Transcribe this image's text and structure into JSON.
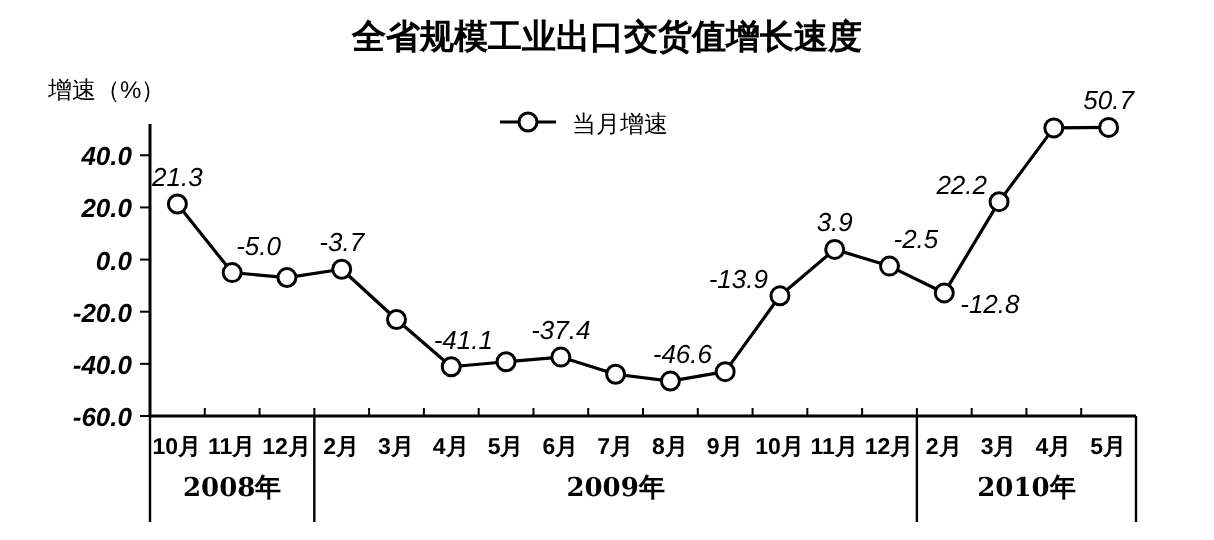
{
  "chart_data": {
    "type": "line",
    "title": "全省规模工业出口交货值增长速度",
    "ylabel": "增速（%）",
    "categories": [
      "10月",
      "11月",
      "12月",
      "2月",
      "3月",
      "4月",
      "5月",
      "6月",
      "7月",
      "8月",
      "9月",
      "10月",
      "11月",
      "12月",
      "2月",
      "3月",
      "4月",
      "5月"
    ],
    "series": [
      {
        "name": "当月增速",
        "color": "#000000",
        "values": [
          21.3,
          -5.0,
          -6.9,
          -3.7,
          -23,
          -41.1,
          -39.2,
          -37.4,
          -44,
          -46.6,
          -43,
          -13.9,
          3.9,
          -2.5,
          -12.8,
          22.2,
          50.5,
          50.7
        ],
        "value_labels": [
          "21.3",
          "-5.0",
          null,
          "-3.7",
          null,
          "-41.1",
          null,
          "-37.4",
          null,
          "-46.6",
          null,
          "-13.9",
          "3.9",
          "-2.5",
          "-12.8",
          "22.2",
          null,
          "50.7"
        ]
      }
    ],
    "ylim": [
      -60,
      52
    ],
    "yticks": [
      {
        "value": -60,
        "label": "-60.0"
      },
      {
        "value": -40,
        "label": "-40.0"
      },
      {
        "value": -20,
        "label": "-20.0"
      },
      {
        "value": 0,
        "label": "0.0"
      },
      {
        "value": 20,
        "label": "20.0"
      },
      {
        "value": 40,
        "label": "40.0"
      }
    ],
    "legend": "top",
    "marker": "circle",
    "line_style": "solid",
    "annotations": [
      "2008年",
      "2009年",
      "2010年"
    ]
  }
}
